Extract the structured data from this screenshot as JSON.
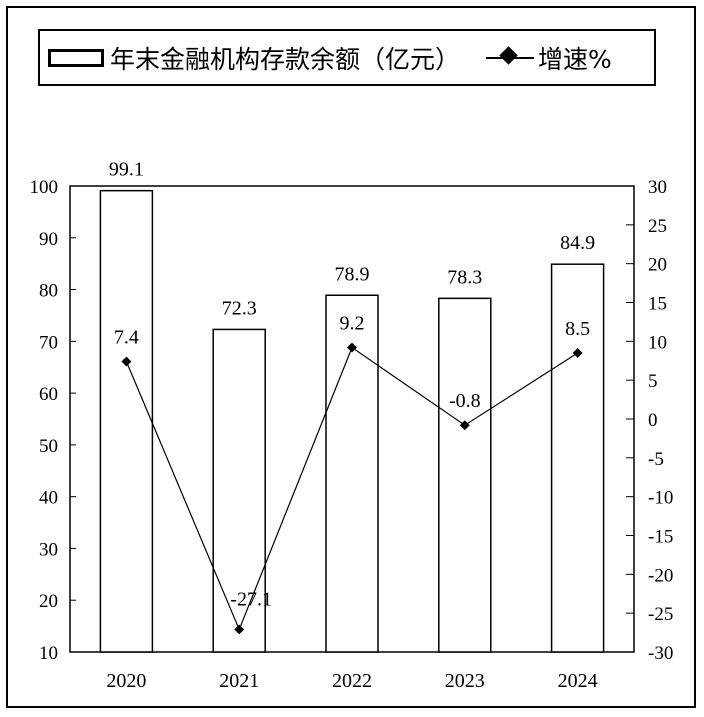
{
  "chart_data": {
    "type": "bar+line",
    "categories": [
      "2020",
      "2021",
      "2022",
      "2023",
      "2024"
    ],
    "series": [
      {
        "name": "年末金融机构存款余额（亿元）",
        "type": "bar",
        "axis": "left",
        "values": [
          99.1,
          72.3,
          78.9,
          78.3,
          84.9
        ],
        "labels": [
          "99.1",
          "72.3",
          "78.9",
          "78.3",
          "84.9"
        ]
      },
      {
        "name": "增速%",
        "type": "line",
        "axis": "right",
        "values": [
          7.4,
          -27.1,
          9.2,
          -0.8,
          8.5
        ],
        "labels": [
          "7.4",
          "-27.1",
          "9.2",
          "-0.8",
          "8.5"
        ]
      }
    ],
    "left_axis": {
      "ylim": [
        10,
        100
      ],
      "ticks": [
        "10",
        "20",
        "30",
        "40",
        "50",
        "60",
        "70",
        "80",
        "90",
        "100"
      ]
    },
    "right_axis": {
      "ylim": [
        -30,
        30
      ],
      "ticks": [
        "-30",
        "-25",
        "-20",
        "-15",
        "-10",
        "-5",
        "0",
        "5",
        "10",
        "15",
        "20",
        "25",
        "30"
      ]
    },
    "legend_position": "top",
    "grid": false,
    "colors": {
      "bar_fill": "#ffffff",
      "bar_stroke": "#000000",
      "line": "#000000"
    }
  }
}
